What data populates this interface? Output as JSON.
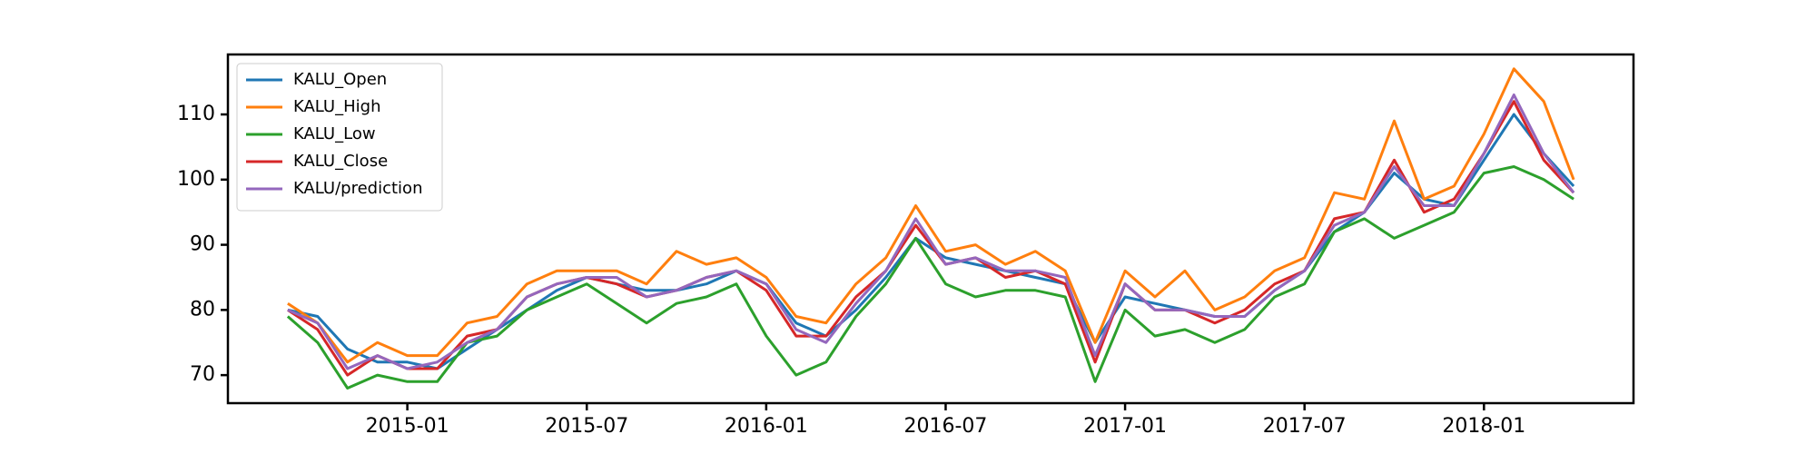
{
  "chart_data": {
    "type": "line",
    "x": [
      "2014-09",
      "2014-10",
      "2014-11",
      "2014-12",
      "2015-01",
      "2015-02",
      "2015-03",
      "2015-04",
      "2015-05",
      "2015-06",
      "2015-07",
      "2015-08",
      "2015-09",
      "2015-10",
      "2015-11",
      "2015-12",
      "2016-01",
      "2016-02",
      "2016-03",
      "2016-04",
      "2016-05",
      "2016-06",
      "2016-07",
      "2016-08",
      "2016-09",
      "2016-10",
      "2016-11",
      "2016-12",
      "2017-01",
      "2017-02",
      "2017-03",
      "2017-04",
      "2017-05",
      "2017-06",
      "2017-07",
      "2017-08",
      "2017-09",
      "2017-10",
      "2017-11",
      "2017-12",
      "2018-01",
      "2018-02",
      "2018-03",
      "2018-04"
    ],
    "series": [
      {
        "name": "KALU_Open",
        "color": "#1f77b4",
        "values": [
          80,
          79,
          74,
          72,
          72,
          71,
          74,
          77,
          80,
          83,
          85,
          84,
          83,
          83,
          84,
          86,
          84,
          78,
          76,
          80,
          85,
          91,
          88,
          87,
          86,
          85,
          84,
          75,
          82,
          81,
          80,
          79,
          79,
          83,
          86,
          92,
          95,
          101,
          97,
          96,
          103,
          110,
          104,
          99
        ]
      },
      {
        "name": "KALU_High",
        "color": "#ff7f0e",
        "values": [
          81,
          78,
          72,
          75,
          73,
          73,
          78,
          79,
          84,
          86,
          86,
          86,
          84,
          89,
          87,
          88,
          85,
          79,
          78,
          84,
          88,
          96,
          89,
          90,
          87,
          89,
          86,
          75,
          86,
          82,
          86,
          80,
          82,
          86,
          88,
          98,
          97,
          109,
          97,
          99,
          107,
          117,
          112,
          100
        ]
      },
      {
        "name": "KALU_Low",
        "color": "#2ca02c",
        "values": [
          79,
          75,
          68,
          70,
          69,
          69,
          75,
          76,
          80,
          82,
          84,
          81,
          78,
          81,
          82,
          84,
          76,
          70,
          72,
          79,
          84,
          91,
          84,
          82,
          83,
          83,
          82,
          69,
          80,
          76,
          77,
          75,
          77,
          82,
          84,
          92,
          94,
          91,
          93,
          95,
          101,
          102,
          100,
          97
        ]
      },
      {
        "name": "KALU_Close",
        "color": "#d62728",
        "values": [
          80,
          77,
          70,
          73,
          71,
          71,
          76,
          77,
          82,
          84,
          85,
          84,
          82,
          83,
          85,
          86,
          83,
          76,
          76,
          82,
          86,
          93,
          87,
          88,
          85,
          86,
          84,
          72,
          84,
          80,
          80,
          78,
          80,
          84,
          86,
          94,
          95,
          103,
          95,
          97,
          104,
          112,
          103,
          98
        ]
      },
      {
        "name": "KALU/prediction",
        "color": "#9467bd",
        "values": [
          80,
          78,
          71,
          73,
          71,
          72,
          75,
          77,
          82,
          84,
          85,
          85,
          82,
          83,
          85,
          86,
          84,
          77,
          75,
          81,
          86,
          94,
          87,
          88,
          86,
          86,
          85,
          73,
          84,
          80,
          80,
          79,
          79,
          83,
          86,
          93,
          95,
          102,
          96,
          96,
          104,
          113,
          104,
          98
        ]
      }
    ],
    "xlim": [
      "2014-07",
      "2018-06"
    ],
    "xticks": [
      "2015-01",
      "2015-07",
      "2016-01",
      "2016-07",
      "2017-01",
      "2017-07",
      "2018-01"
    ],
    "ylim": [
      65.7,
      119.2
    ],
    "yticks": [
      70,
      80,
      90,
      100,
      110
    ],
    "legend": "upper left"
  }
}
